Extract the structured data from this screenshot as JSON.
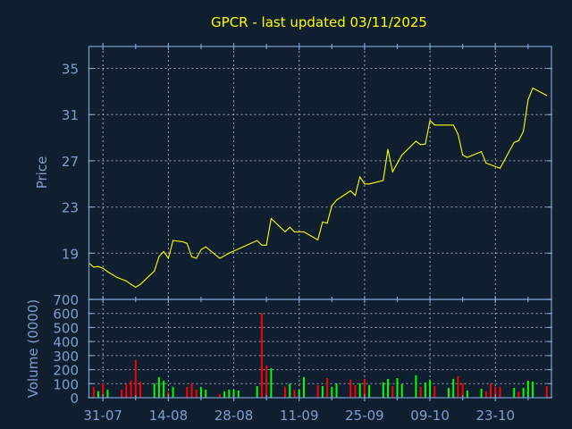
{
  "chart_data": [
    {
      "type": "line",
      "title": "GPCR - last updated 03/11/2025",
      "ylabel": "Price",
      "xlim": [
        "2025-07-28",
        "2025-11-04"
      ],
      "ylim": [
        15,
        36.9
      ],
      "yticks": [
        19,
        23,
        27,
        31,
        35
      ],
      "xticks": [
        {
          "date": "2025-07-31",
          "label": "31-07"
        },
        {
          "date": "2025-08-14",
          "label": "14-08"
        },
        {
          "date": "2025-08-28",
          "label": "28-08"
        },
        {
          "date": "2025-09-11",
          "label": "11-09"
        },
        {
          "date": "2025-09-25",
          "label": "25-09"
        },
        {
          "date": "2025-10-09",
          "label": "09-10"
        },
        {
          "date": "2025-10-23",
          "label": "23-10"
        }
      ],
      "grid": true,
      "line_color": "#ffff00",
      "points": [
        [
          "2025-07-28",
          18.15
        ],
        [
          "2025-07-29",
          17.8
        ],
        [
          "2025-07-30",
          17.85
        ],
        [
          "2025-07-31",
          17.7
        ],
        [
          "2025-08-01",
          17.4
        ],
        [
          "2025-08-03",
          16.9
        ],
        [
          "2025-08-05",
          16.6
        ],
        [
          "2025-08-06",
          16.3
        ],
        [
          "2025-08-07",
          16.05
        ],
        [
          "2025-08-08",
          16.3
        ],
        [
          "2025-08-11",
          17.45
        ],
        [
          "2025-08-12",
          18.7
        ],
        [
          "2025-08-13",
          19.15
        ],
        [
          "2025-08-14",
          18.55
        ],
        [
          "2025-08-15",
          20.1
        ],
        [
          "2025-08-17",
          20.0
        ],
        [
          "2025-08-18",
          19.85
        ],
        [
          "2025-08-19",
          18.7
        ],
        [
          "2025-08-20",
          18.55
        ],
        [
          "2025-08-21",
          19.3
        ],
        [
          "2025-08-22",
          19.55
        ],
        [
          "2025-08-25",
          18.55
        ],
        [
          "2025-08-27",
          19.0
        ],
        [
          "2025-09-02",
          20.1
        ],
        [
          "2025-09-03",
          19.7
        ],
        [
          "2025-09-04",
          19.7
        ],
        [
          "2025-09-05",
          22.0
        ],
        [
          "2025-09-08",
          20.85
        ],
        [
          "2025-09-09",
          21.25
        ],
        [
          "2025-09-10",
          20.85
        ],
        [
          "2025-09-12",
          20.85
        ],
        [
          "2025-09-15",
          20.15
        ],
        [
          "2025-09-16",
          21.7
        ],
        [
          "2025-09-17",
          21.6
        ],
        [
          "2025-09-18",
          23.1
        ],
        [
          "2025-09-19",
          23.6
        ],
        [
          "2025-09-22",
          24.4
        ],
        [
          "2025-09-23",
          24.0
        ],
        [
          "2025-09-24",
          25.6
        ],
        [
          "2025-09-25",
          25.0
        ],
        [
          "2025-09-26",
          25.0
        ],
        [
          "2025-09-29",
          25.3
        ],
        [
          "2025-09-30",
          28.0
        ],
        [
          "2025-10-01",
          26.05
        ],
        [
          "2025-10-03",
          27.5
        ],
        [
          "2025-10-06",
          28.7
        ],
        [
          "2025-10-07",
          28.4
        ],
        [
          "2025-10-08",
          28.45
        ],
        [
          "2025-10-09",
          30.5
        ],
        [
          "2025-10-10",
          30.1
        ],
        [
          "2025-10-11",
          30.1
        ],
        [
          "2025-10-14",
          30.1
        ],
        [
          "2025-10-15",
          29.3
        ],
        [
          "2025-10-16",
          27.5
        ],
        [
          "2025-10-17",
          27.3
        ],
        [
          "2025-10-20",
          27.8
        ],
        [
          "2025-10-21",
          26.8
        ],
        [
          "2025-10-24",
          26.35
        ],
        [
          "2025-10-27",
          28.6
        ],
        [
          "2025-10-28",
          28.75
        ],
        [
          "2025-10-29",
          29.55
        ],
        [
          "2025-10-30",
          32.3
        ],
        [
          "2025-10-31",
          33.3
        ],
        [
          "2025-11-03",
          32.65
        ]
      ]
    },
    {
      "type": "bar",
      "ylabel": "Volume (0000)",
      "ylim": [
        0,
        700
      ],
      "yticks": [
        0,
        100,
        200,
        300,
        400,
        500,
        600,
        700
      ],
      "grid": true,
      "colors": {
        "up": "#00ff00",
        "down": "#ff0000"
      },
      "bars": [
        [
          "2025-07-29",
          77,
          "down"
        ],
        [
          "2025-07-30",
          47,
          "up"
        ],
        [
          "2025-07-31",
          102,
          "down"
        ],
        [
          "2025-08-01",
          57,
          "up"
        ],
        [
          "2025-08-04",
          57,
          "down"
        ],
        [
          "2025-08-05",
          96,
          "down"
        ],
        [
          "2025-08-06",
          121,
          "down"
        ],
        [
          "2025-08-07",
          268,
          "down"
        ],
        [
          "2025-08-08",
          115,
          "down"
        ],
        [
          "2025-08-11",
          100,
          "up"
        ],
        [
          "2025-08-12",
          147,
          "up"
        ],
        [
          "2025-08-13",
          121,
          "up"
        ],
        [
          "2025-08-14",
          40,
          "down"
        ],
        [
          "2025-08-15",
          77,
          "up"
        ],
        [
          "2025-08-18",
          77,
          "down"
        ],
        [
          "2025-08-19",
          102,
          "down"
        ],
        [
          "2025-08-20",
          57,
          "down"
        ],
        [
          "2025-08-21",
          77,
          "up"
        ],
        [
          "2025-08-22",
          57,
          "up"
        ],
        [
          "2025-08-25",
          26,
          "down"
        ],
        [
          "2025-08-26",
          45,
          "up"
        ],
        [
          "2025-08-27",
          57,
          "up"
        ],
        [
          "2025-08-28",
          57,
          "up"
        ],
        [
          "2025-08-29",
          51,
          "up"
        ],
        [
          "2025-09-02",
          83,
          "up"
        ],
        [
          "2025-09-03",
          604,
          "down"
        ],
        [
          "2025-09-04",
          230,
          "down"
        ],
        [
          "2025-09-05",
          211,
          "up"
        ],
        [
          "2025-09-08",
          77,
          "down"
        ],
        [
          "2025-09-09",
          100,
          "up"
        ],
        [
          "2025-09-10",
          57,
          "down"
        ],
        [
          "2025-09-11",
          57,
          "up"
        ],
        [
          "2025-09-12",
          147,
          "up"
        ],
        [
          "2025-09-15",
          89,
          "down"
        ],
        [
          "2025-09-16",
          83,
          "up"
        ],
        [
          "2025-09-17",
          140,
          "down"
        ],
        [
          "2025-09-18",
          77,
          "up"
        ],
        [
          "2025-09-19",
          102,
          "up"
        ],
        [
          "2025-09-22",
          128,
          "down"
        ],
        [
          "2025-09-23",
          89,
          "down"
        ],
        [
          "2025-09-24",
          102,
          "up"
        ],
        [
          "2025-09-25",
          134,
          "down"
        ],
        [
          "2025-09-26",
          89,
          "up"
        ],
        [
          "2025-09-29",
          109,
          "up"
        ],
        [
          "2025-09-30",
          134,
          "up"
        ],
        [
          "2025-10-01",
          83,
          "down"
        ],
        [
          "2025-10-02",
          140,
          "up"
        ],
        [
          "2025-10-03",
          96,
          "up"
        ],
        [
          "2025-10-06",
          160,
          "up"
        ],
        [
          "2025-10-07",
          77,
          "down"
        ],
        [
          "2025-10-08",
          109,
          "up"
        ],
        [
          "2025-10-09",
          128,
          "up"
        ],
        [
          "2025-10-10",
          83,
          "down"
        ],
        [
          "2025-10-13",
          70,
          "up"
        ],
        [
          "2025-10-14",
          134,
          "up"
        ],
        [
          "2025-10-15",
          153,
          "down"
        ],
        [
          "2025-10-16",
          102,
          "down"
        ],
        [
          "2025-10-17",
          51,
          "up"
        ],
        [
          "2025-10-20",
          64,
          "up"
        ],
        [
          "2025-10-21",
          45,
          "down"
        ],
        [
          "2025-10-22",
          102,
          "down"
        ],
        [
          "2025-10-23",
          77,
          "down"
        ],
        [
          "2025-10-24",
          77,
          "down"
        ],
        [
          "2025-10-27",
          70,
          "up"
        ],
        [
          "2025-10-28",
          45,
          "down"
        ],
        [
          "2025-10-29",
          70,
          "up"
        ],
        [
          "2025-10-30",
          121,
          "up"
        ],
        [
          "2025-10-31",
          115,
          "up"
        ],
        [
          "2025-11-03",
          83,
          "down"
        ]
      ]
    }
  ]
}
